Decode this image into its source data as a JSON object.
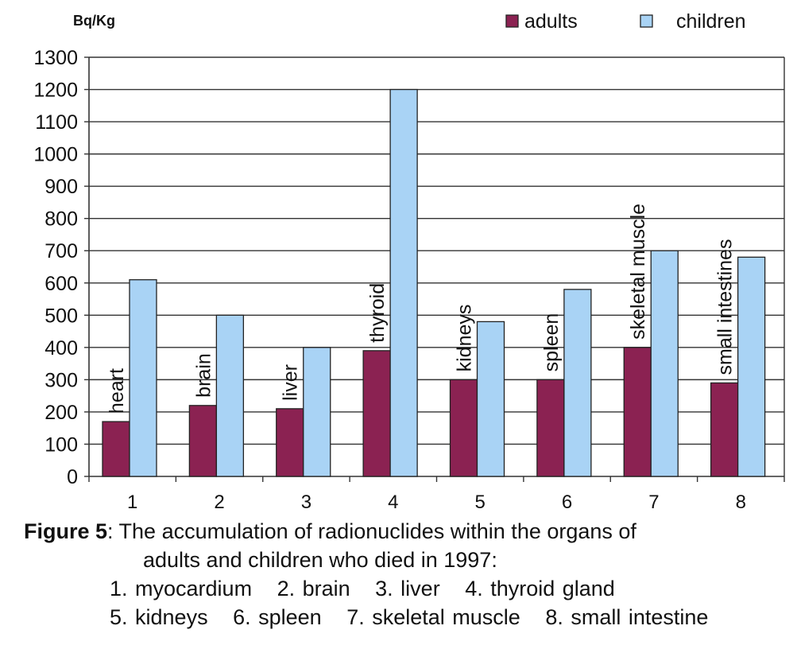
{
  "chart_data": {
    "type": "bar",
    "title": "",
    "ylabel": "Bq/Kg",
    "xlabel": "",
    "categories": [
      "1",
      "2",
      "3",
      "4",
      "5",
      "6",
      "7",
      "8"
    ],
    "organ_labels": [
      "heart",
      "brain",
      "liver",
      "thyroid",
      "kidneys",
      "spleen",
      "skeletal muscle",
      "small intestines"
    ],
    "series": [
      {
        "name": "adults",
        "color": "#8b2252",
        "values": [
          170,
          220,
          210,
          390,
          300,
          300,
          400,
          290
        ]
      },
      {
        "name": "children",
        "color": "#a9d3f5",
        "values": [
          610,
          500,
          400,
          1200,
          480,
          580,
          700,
          680
        ]
      }
    ],
    "ylim": [
      0,
      1300
    ],
    "yticks": [
      0,
      100,
      200,
      300,
      400,
      500,
      600,
      700,
      800,
      900,
      1000,
      1100,
      1200,
      1300
    ],
    "grid": true,
    "legend": "top-right"
  },
  "caption": {
    "label": "Figure 5",
    "text_line1": ": The accumulation of radionuclides within the organs of",
    "text_line2": "adults and children who died in 1997:",
    "organs_row1": [
      "1. myocardium",
      "2. brain",
      "3. liver",
      "4. thyroid gland"
    ],
    "organs_row2": [
      "5. kidneys",
      "6. spleen",
      "7. skeletal muscle",
      "8. small intestine"
    ]
  }
}
